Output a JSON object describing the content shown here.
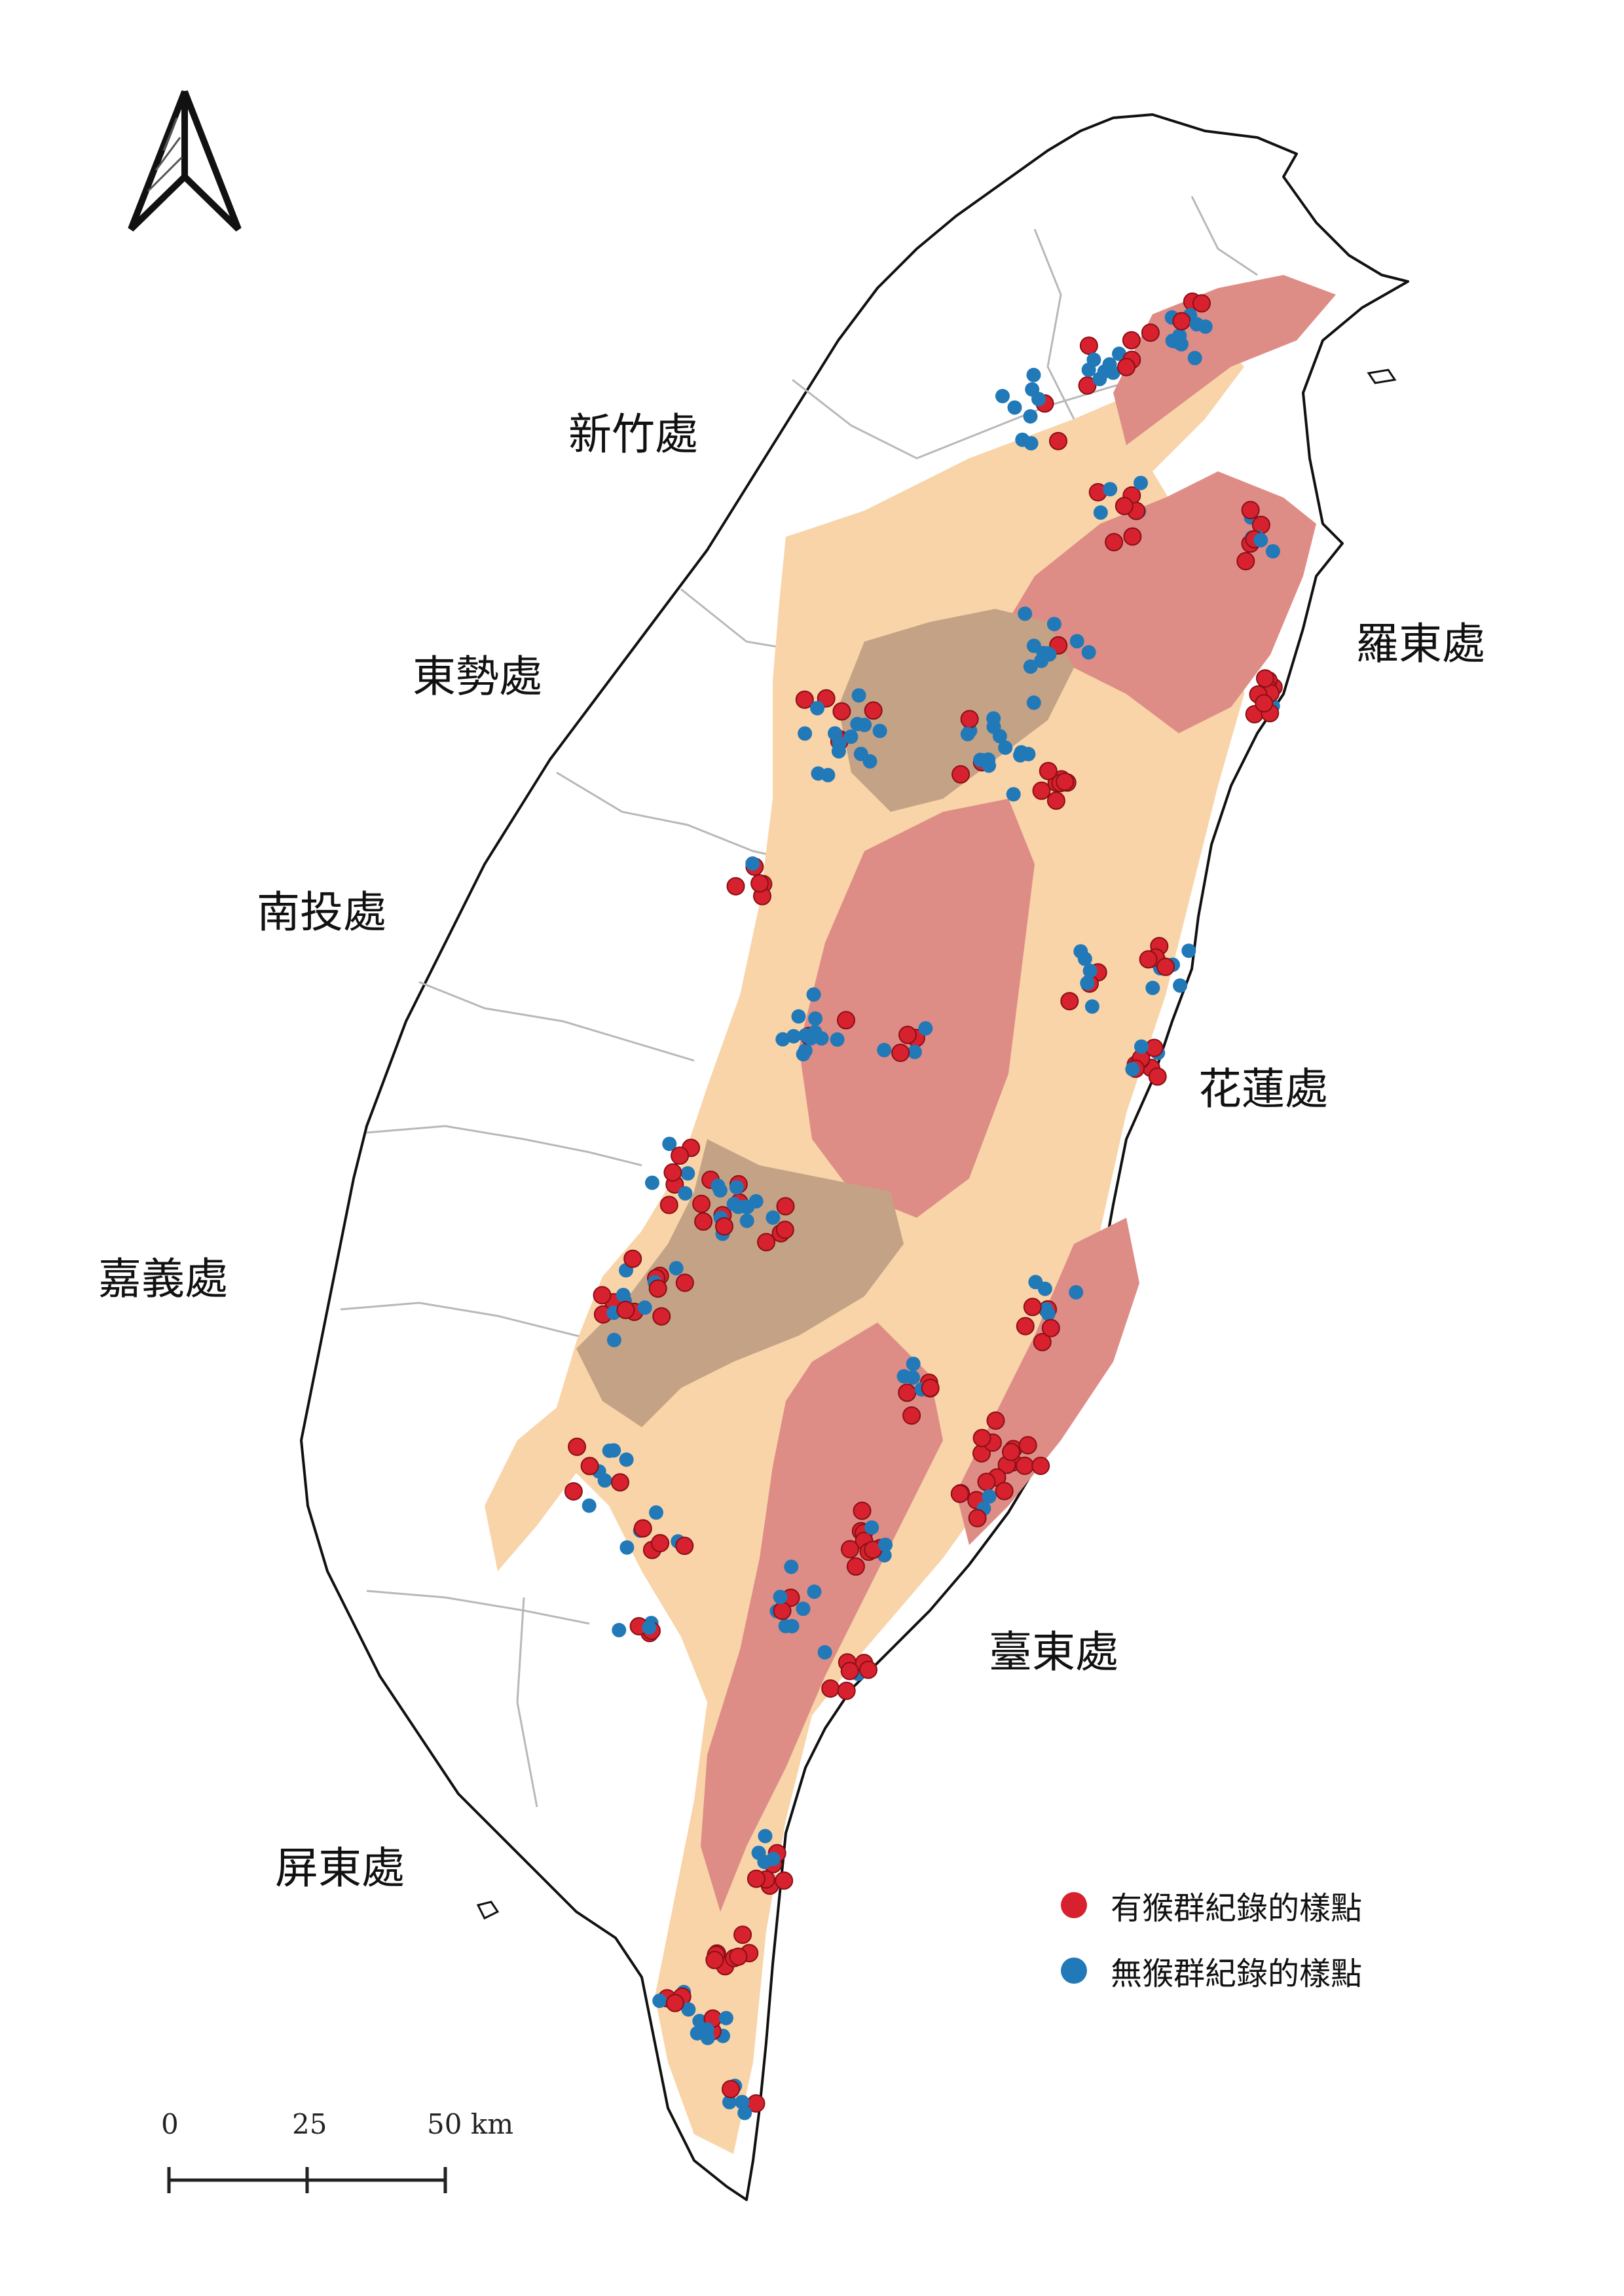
{
  "regions": [
    {
      "id": "hsinchu",
      "label": "新竹處"
    },
    {
      "id": "dongshi",
      "label": "東勢處"
    },
    {
      "id": "nantou",
      "label": "南投處"
    },
    {
      "id": "chiayi",
      "label": "嘉義處"
    },
    {
      "id": "pingtung",
      "label": "屏東處"
    },
    {
      "id": "luodong",
      "label": "羅東處"
    },
    {
      "id": "hualien",
      "label": "花蓮處"
    },
    {
      "id": "taitung",
      "label": "臺東處"
    }
  ],
  "legend": {
    "items": [
      {
        "label": "有猴群紀錄的樣點",
        "color": "#d7212e"
      },
      {
        "label": "無猴群紀錄的樣點",
        "color": "#2279b8"
      }
    ]
  },
  "scale_bar": {
    "ticks": [
      "0",
      "25",
      "50 km"
    ]
  },
  "colors": {
    "land": "#ffffff",
    "coast": "#111111",
    "boundary": "#b8b8b8",
    "forest_light": "#f8d4a8",
    "forest_red": "#de8c86",
    "forest_brown": "#c4a285",
    "present_point": "#d7212e",
    "absent_point": "#2279b8"
  }
}
